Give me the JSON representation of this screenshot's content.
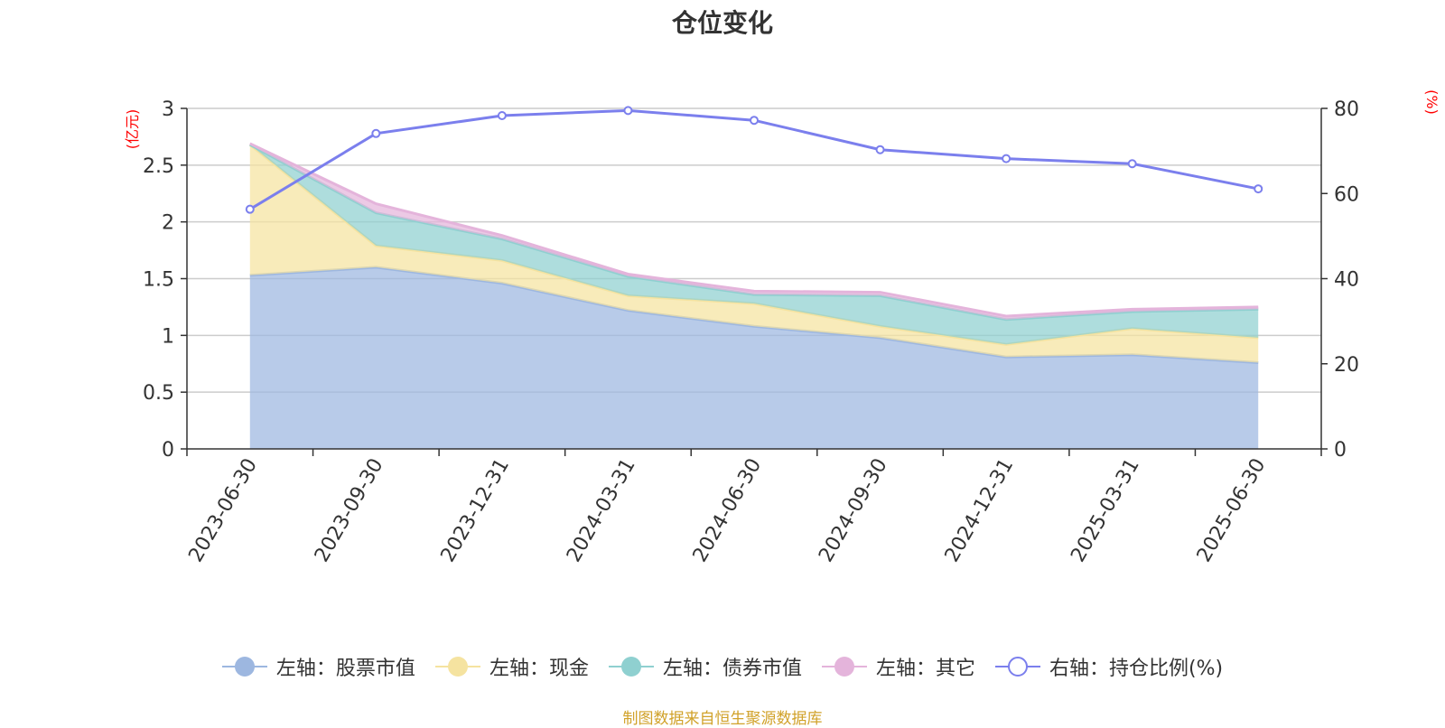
{
  "chart_data": {
    "type": "area",
    "title": "仓位变化",
    "x": [
      "2023-06-30",
      "2023-09-30",
      "2023-12-31",
      "2024-03-31",
      "2024-06-30",
      "2024-09-30",
      "2024-12-31",
      "2025-03-31",
      "2025-06-30"
    ],
    "y_left": {
      "label": "(亿元)",
      "ylim": [
        0,
        3
      ],
      "ticks": [
        "0",
        "0.5",
        "1",
        "1.5",
        "2",
        "2.5",
        "3"
      ]
    },
    "y_right": {
      "label": "(%)",
      "ylim": [
        0,
        80
      ],
      "ticks": [
        "0",
        "20",
        "40",
        "60",
        "80"
      ]
    },
    "stacked": true,
    "series": [
      {
        "name": "左轴：股票市值",
        "axis": "left",
        "kind": "area",
        "color": "#9db7e0",
        "values": [
          1.53,
          1.6,
          1.46,
          1.22,
          1.08,
          0.98,
          0.81,
          0.83,
          0.76
        ]
      },
      {
        "name": "左轴：现金",
        "axis": "left",
        "kind": "area",
        "color": "#f5e3a0",
        "values": [
          1.15,
          0.19,
          0.2,
          0.13,
          0.2,
          0.1,
          0.11,
          0.23,
          0.22
        ]
      },
      {
        "name": "左轴：债券市值",
        "axis": "left",
        "kind": "area",
        "color": "#8fd0d0",
        "values": [
          0.0,
          0.29,
          0.19,
          0.17,
          0.08,
          0.27,
          0.22,
          0.15,
          0.25
        ]
      },
      {
        "name": "左轴：其它",
        "axis": "left",
        "kind": "area",
        "color": "#e4b4db",
        "values": [
          0.01,
          0.08,
          0.03,
          0.02,
          0.03,
          0.03,
          0.03,
          0.02,
          0.02
        ]
      },
      {
        "name": "右轴：持仓比例(%)",
        "axis": "right",
        "kind": "line",
        "color": "#7b7fed",
        "values": [
          56.3,
          74.1,
          78.3,
          79.5,
          77.2,
          70.3,
          68.2,
          67.0,
          61.1
        ]
      }
    ],
    "grid": true,
    "legend_position": "bottom"
  },
  "source": "制图数据来自恒生聚源数据库"
}
